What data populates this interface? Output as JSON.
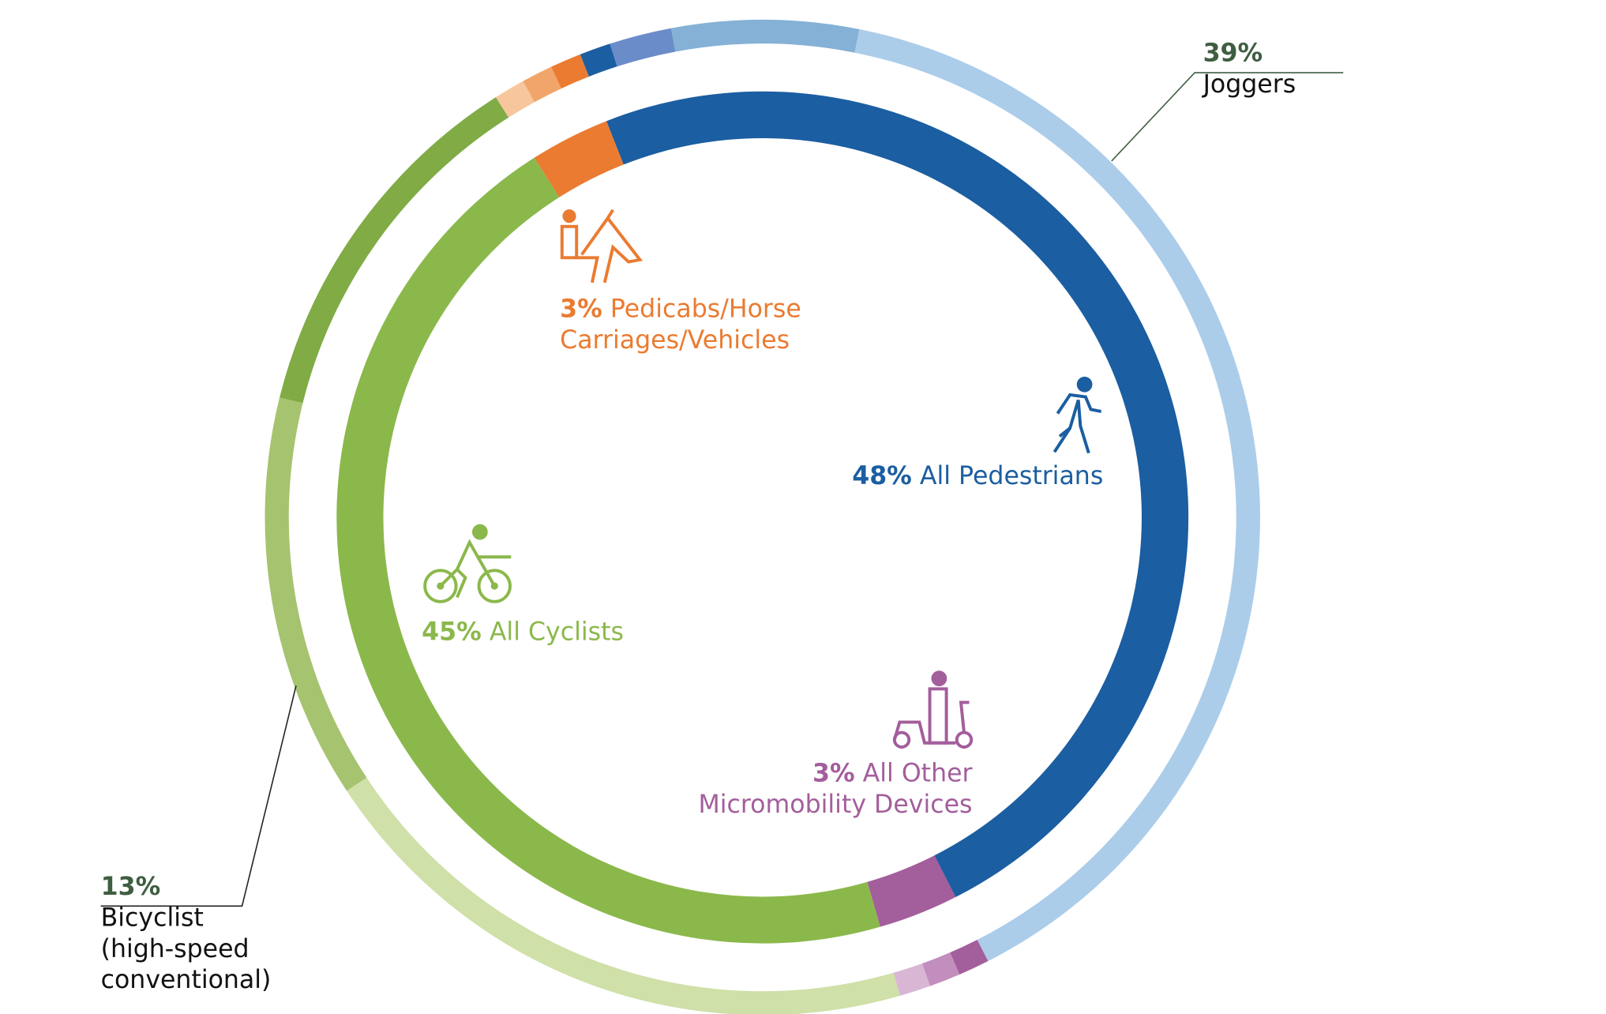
{
  "chart_data": {
    "type": "sunburst",
    "start_angle": -21.5,
    "inner": {
      "categories": [
        "All Pedestrians",
        "All Other Micromobility Devices",
        "All Cyclists",
        "Pedicabs/Horse Carriages/Vehicles"
      ],
      "values": [
        48,
        3,
        45,
        3
      ],
      "value_labels": [
        "48%",
        "3%",
        "45%",
        "3%"
      ],
      "colors": [
        "#1b5ea1",
        "#a35e9c",
        "#8bb84b",
        "#ea7b31"
      ]
    },
    "outer": {
      "categories": [
        null,
        null,
        null,
        "Joggers",
        null,
        null,
        null,
        null,
        "Bicyclist (high-speed conventional)",
        null,
        null,
        null,
        null
      ],
      "values": [
        1,
        2,
        6,
        39,
        1,
        1,
        1,
        20,
        13,
        12,
        1,
        1,
        1
      ],
      "value_labels": [
        null,
        null,
        null,
        "39%",
        null,
        null,
        null,
        null,
        "13%",
        null,
        null,
        null,
        null
      ],
      "colors": [
        "#1b5ea1",
        "#6a8cc8",
        "#85b1d6",
        "#abcdea",
        "#a35e9c",
        "#c28ebd",
        "#d8b6d4",
        "#cfe0a8",
        "#a6c36f",
        "#80ab45",
        "#f7c69c",
        "#f2a56a",
        "#eb7b31"
      ]
    }
  }
}
